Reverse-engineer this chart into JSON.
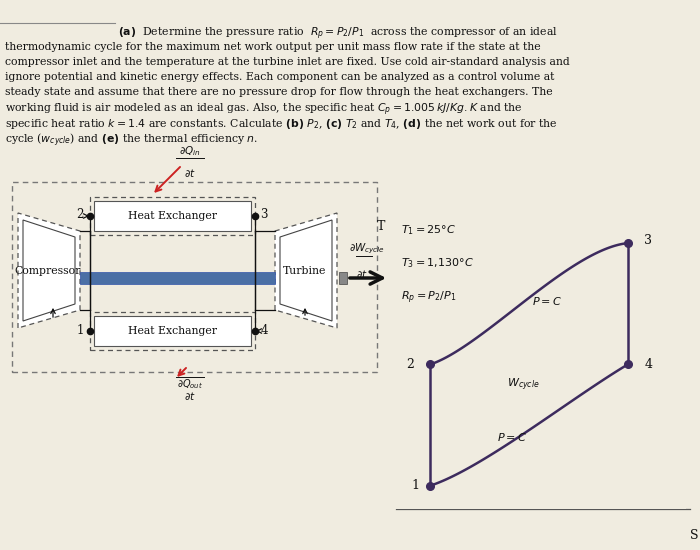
{
  "bg_color": "#f0ece0",
  "text_color": "#111111",
  "fig_w": 7.0,
  "fig_h": 5.5,
  "dpi": 100,
  "fontsize_body": 7.8,
  "fontsize_diagram": 8.0,
  "cycle_color": "#3d2b5e",
  "node_color": "#111111",
  "red_arrow_color": "#cc2222",
  "blue_shaft_color": "#4a6fa5",
  "ts_info": [
    "$T_1 = 25°C$",
    "$T_3 = 1{,}130°C$",
    "$R_p = P_2/P_1$"
  ]
}
